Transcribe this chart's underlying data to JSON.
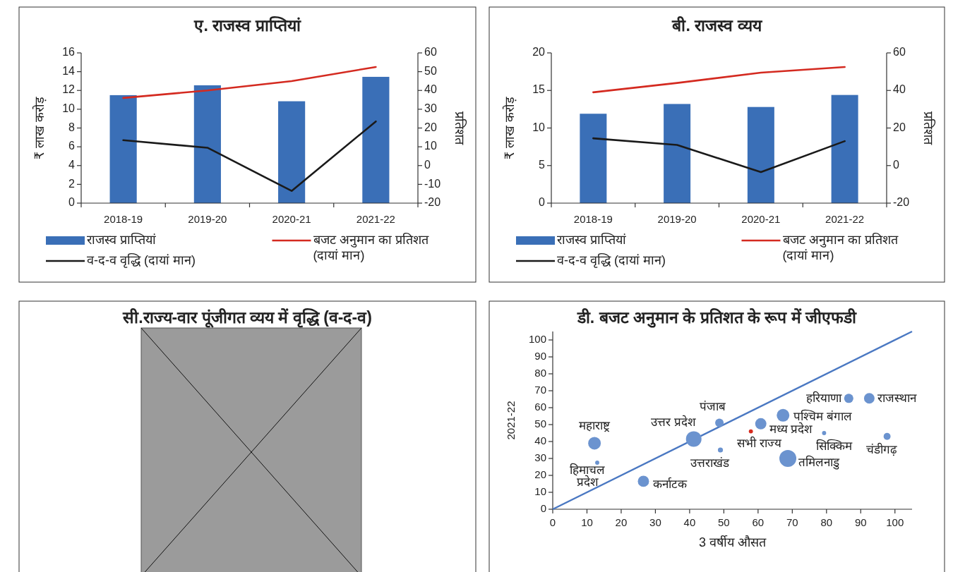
{
  "chart_data": [
    {
      "type": "bar",
      "title": "ए. राजस्व प्राप्तियां",
      "ylabel": "₹ लाख करोड़",
      "y2label": "प्रतिशत",
      "categories": [
        "2018-19",
        "2019-20",
        "2020-21",
        "2021-22"
      ],
      "series": [
        {
          "name": "राजस्व प्राप्तियां",
          "type": "bar",
          "color": "#3a6fb7",
          "values": [
            11.5,
            12.55,
            10.85,
            13.45
          ]
        },
        {
          "name": "बजट अनुमान का प्रतिशत (दायां मान)",
          "type": "line",
          "axis": "y2",
          "color": "#d42a20",
          "values": [
            36,
            40,
            45,
            52.5
          ]
        },
        {
          "name": "व-द-व वृद्धि (दायां मान)",
          "type": "line",
          "axis": "y2",
          "color": "#1a1a1a",
          "values": [
            13.5,
            9.5,
            -13.5,
            23.5
          ]
        }
      ],
      "ylim": [
        0,
        16
      ],
      "yticks": [
        0,
        2,
        4,
        6,
        8,
        10,
        12,
        14,
        16
      ],
      "y2lim": [
        -20,
        60
      ],
      "y2ticks": [
        -20,
        -10,
        0,
        10,
        20,
        30,
        40,
        50,
        60
      ],
      "legend": "bottom"
    },
    {
      "type": "bar",
      "title": "बी. राजस्व व्यय",
      "ylabel": "₹ लाख करोड़",
      "y2label": "प्रतिशत",
      "categories": [
        "2018-19",
        "2019-20",
        "2020-21",
        "2021-22"
      ],
      "series": [
        {
          "name": "राजस्व प्राप्तियां",
          "type": "bar",
          "color": "#3a6fb7",
          "values": [
            11.9,
            13.2,
            12.8,
            14.4
          ]
        },
        {
          "name": "बजट अनुमान का प्रतिशत (दायां मान)",
          "type": "line",
          "axis": "y2",
          "color": "#d42a20",
          "values": [
            39,
            44,
            49.5,
            52.5
          ]
        },
        {
          "name": "व-द-व वृद्धि (दायां मान)",
          "type": "line",
          "axis": "y2",
          "color": "#1a1a1a",
          "values": [
            14.5,
            11,
            -3.5,
            13
          ]
        }
      ],
      "ylim": [
        0,
        20
      ],
      "yticks": [
        0,
        5,
        10,
        15,
        20
      ],
      "y2lim": [
        -20,
        60
      ],
      "y2ticks": [
        -20,
        0,
        20,
        40,
        60
      ],
      "legend": "bottom"
    },
    {
      "type": "other",
      "title": "सी.राज्य-वार पूंजीगत व्यय में वृद्धि (व-द-व)"
    },
    {
      "type": "bubble",
      "title": "डी. बजट अनुमान के प्रतिशत के रूप में जीएफडी",
      "xlabel": "3 वर्षीय औसत",
      "ylabel": "2021-22",
      "series": [
        {
          "type": "line",
          "color": "#4a78c2",
          "x": [
            0,
            105
          ],
          "values": [
            0,
            105
          ]
        },
        {
          "color": "#6b93cf",
          "x": [
            12.2,
            13,
            26.5,
            41.2,
            48.7,
            49,
            60.8,
            67.3,
            68.7,
            86.5,
            92.5,
            79.3,
            97.7
          ],
          "values": [
            39,
            27.5,
            16.5,
            41.5,
            51,
            35,
            50.5,
            55.5,
            30,
            65.5,
            65.5,
            45,
            43
          ],
          "sizes": [
            0.56,
            0.06,
            0.44,
            0.84,
            0.25,
            0.09,
            0.44,
            0.56,
            1,
            0.3,
            0.39,
            0.06,
            0.17
          ]
        },
        {
          "color": "#d62b1f",
          "x": [
            57.9
          ],
          "values": [
            46
          ],
          "sizes": [
            0.06
          ]
        }
      ],
      "annotations": [
        {
          "text": "महाराष्ट्र",
          "x": 12.2,
          "y": 39
        },
        {
          "text": "हिमाचल प्रदेश",
          "x": 13,
          "y": 27.5
        },
        {
          "text": "कर्नाटक",
          "x": 26.5,
          "y": 16.5
        },
        {
          "text": "उत्तर प्रदेश",
          "x": 41.2,
          "y": 41.5
        },
        {
          "text": "पंजाब",
          "x": 48.7,
          "y": 51
        },
        {
          "text": "उत्तराखंड",
          "x": 49,
          "y": 35
        },
        {
          "text": "मध्य प्रदेश",
          "x": 60.8,
          "y": 50.5
        },
        {
          "text": "पश्चिम बंगाल",
          "x": 67.3,
          "y": 55.5
        },
        {
          "text": "तमिलनाडु",
          "x": 68.7,
          "y": 30
        },
        {
          "text": "हरियाणा",
          "x": 86.5,
          "y": 65.5
        },
        {
          "text": "राजस्थान",
          "x": 92.5,
          "y": 65.5
        },
        {
          "text": "सिक्किम",
          "x": 79.3,
          "y": 45
        },
        {
          "text": "चंडीगढ़",
          "x": 97.7,
          "y": 43
        },
        {
          "text": "सभी राज्य",
          "x": 57.9,
          "y": 46
        }
      ],
      "xlim": [
        0,
        105
      ],
      "xticks": [
        0,
        10,
        20,
        30,
        40,
        50,
        60,
        70,
        80,
        90,
        100
      ],
      "ylim": [
        0,
        105
      ],
      "yticks": [
        0,
        10,
        20,
        30,
        40,
        50,
        60,
        70,
        80,
        90,
        100
      ]
    }
  ]
}
